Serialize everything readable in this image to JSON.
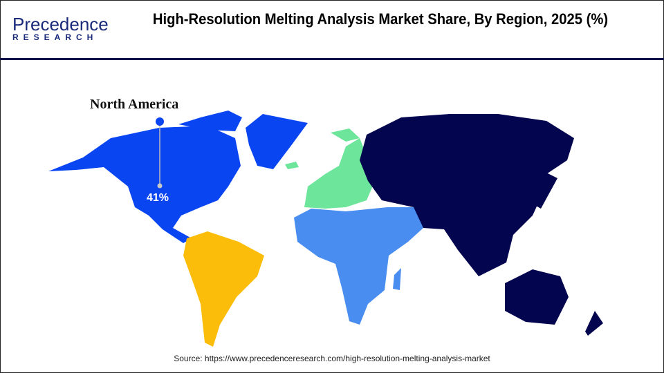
{
  "header": {
    "logo_text": "Precedence",
    "logo_sub": "RESEARCH",
    "title": "High-Resolution Melting Analysis Market Share, By Region, 2025 (%)"
  },
  "map": {
    "highlighted_region": {
      "name": "North America",
      "value": "41%"
    },
    "region_colors": {
      "North America": "#0a45f2",
      "Europe": "#6de59a",
      "Asia Pacific": "#03064f",
      "Latin America": "#fbbd0a",
      "Middle East and Africa": "#4a8df0"
    }
  },
  "footer": {
    "source": "Source: https://www.precedenceresearch.com/high-resolution-melting-analysis-market"
  }
}
